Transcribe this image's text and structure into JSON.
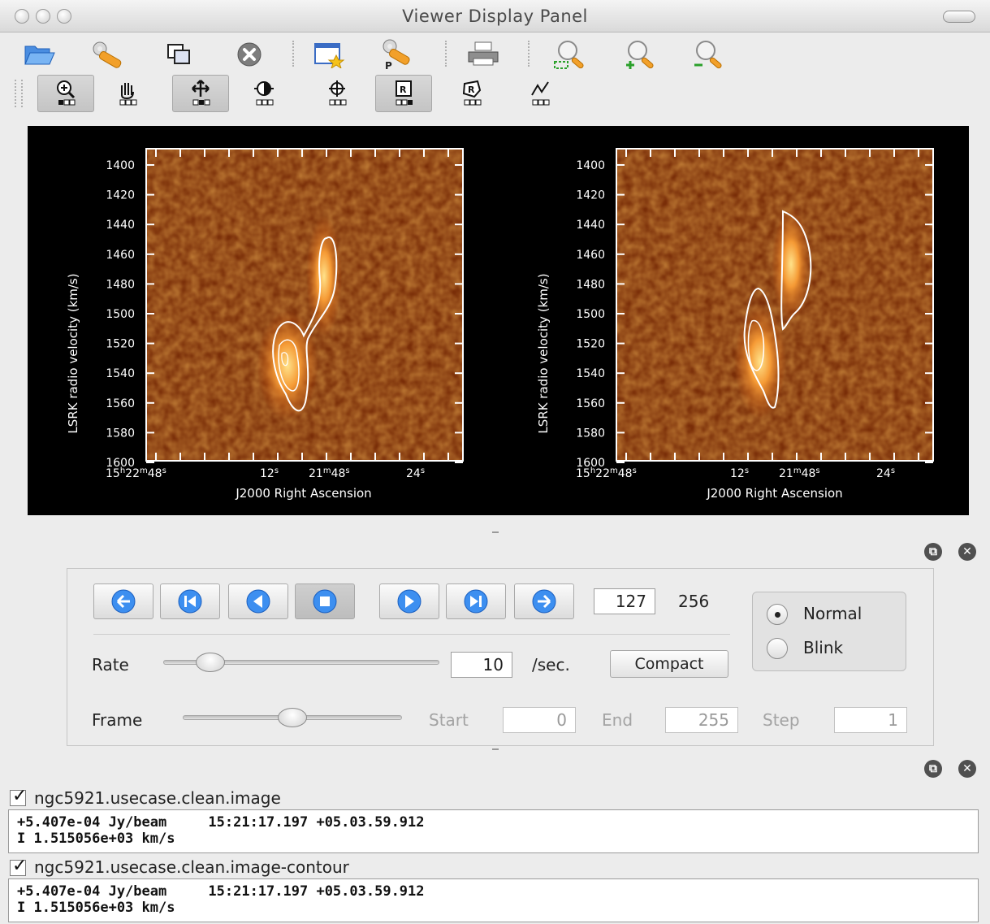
{
  "window": {
    "title": "Viewer Display Panel"
  },
  "toolbar_main": {
    "buttons": [
      {
        "name": "open-folder-icon"
      },
      {
        "name": "data-options-wrench-icon"
      },
      {
        "name": "new-panel-icon"
      },
      {
        "name": "close-panel-icon"
      },
      {
        "name": "panel-options-icon"
      },
      {
        "name": "print-options-wrench-icon"
      },
      {
        "name": "printer-icon"
      },
      {
        "name": "zoom-fit-icon"
      },
      {
        "name": "zoom-in-icon"
      },
      {
        "name": "zoom-out-icon"
      }
    ]
  },
  "toolbar_tools": {
    "buttons": [
      {
        "name": "zoom-tool-icon",
        "active": true
      },
      {
        "name": "pan-tool-icon",
        "active": false
      },
      {
        "name": "move-tool-icon",
        "active": true
      },
      {
        "name": "colormap-tool-icon",
        "active": false
      },
      {
        "name": "crosshair-tool-icon",
        "active": false
      },
      {
        "name": "rectangle-region-tool-icon",
        "active": true
      },
      {
        "name": "polygon-region-tool-icon",
        "active": false
      },
      {
        "name": "polyline-tool-icon",
        "active": false
      }
    ]
  },
  "plots": [
    {
      "ylabel": "LSRK radio velocity (km/s)",
      "xlabel": "J2000 Right Ascension",
      "yticks": [
        "1400",
        "1420",
        "1440",
        "1460",
        "1480",
        "1500",
        "1520",
        "1540",
        "1560",
        "1580",
        "1600"
      ],
      "xticks": [
        "15h22m48s",
        "12s",
        "21m48s",
        "24s"
      ]
    },
    {
      "ylabel": "LSRK radio velocity (km/s)",
      "xlabel": "J2000 Right Ascension",
      "yticks": [
        "1400",
        "1420",
        "1440",
        "1460",
        "1480",
        "1500",
        "1520",
        "1540",
        "1560",
        "1580",
        "1600"
      ],
      "xticks": [
        "15h22m48s",
        "12s",
        "21m48s",
        "24s"
      ]
    }
  ],
  "animator": {
    "nav_buttons": [
      {
        "name": "to-start-icon"
      },
      {
        "name": "step-back-icon"
      },
      {
        "name": "play-backward-icon"
      },
      {
        "name": "stop-icon",
        "pressed": true
      },
      {
        "name": "play-forward-icon"
      },
      {
        "name": "step-forward-icon"
      },
      {
        "name": "to-end-icon"
      }
    ],
    "current_frame": "127",
    "total_frames": "256",
    "mode_normal": "Normal",
    "mode_blink": "Blink",
    "selected_mode": "Normal",
    "rate_label": "Rate",
    "rate_value": "10",
    "rate_unit": "/sec.",
    "rate_slider_fraction": 0.17,
    "compact_label": "Compact",
    "frame_label": "Frame",
    "frame_slider_fraction": 0.5,
    "start_label": "Start",
    "start_value": "0",
    "end_label": "End",
    "end_value": "255",
    "step_label": "Step",
    "step_value": "1"
  },
  "layers": [
    {
      "name": "ngc5921.usecase.clean.image",
      "checked": true,
      "line1": "+5.407e-04 Jy/beam     15:21:17.197 +05.03.59.912",
      "line2": "I 1.515056e+03 km/s"
    },
    {
      "name": "ngc5921.usecase.clean.image-contour",
      "checked": true,
      "line1": "+5.407e-04 Jy/beam     15:21:17.197 +05.03.59.912",
      "line2": "I 1.515056e+03 km/s"
    }
  ]
}
